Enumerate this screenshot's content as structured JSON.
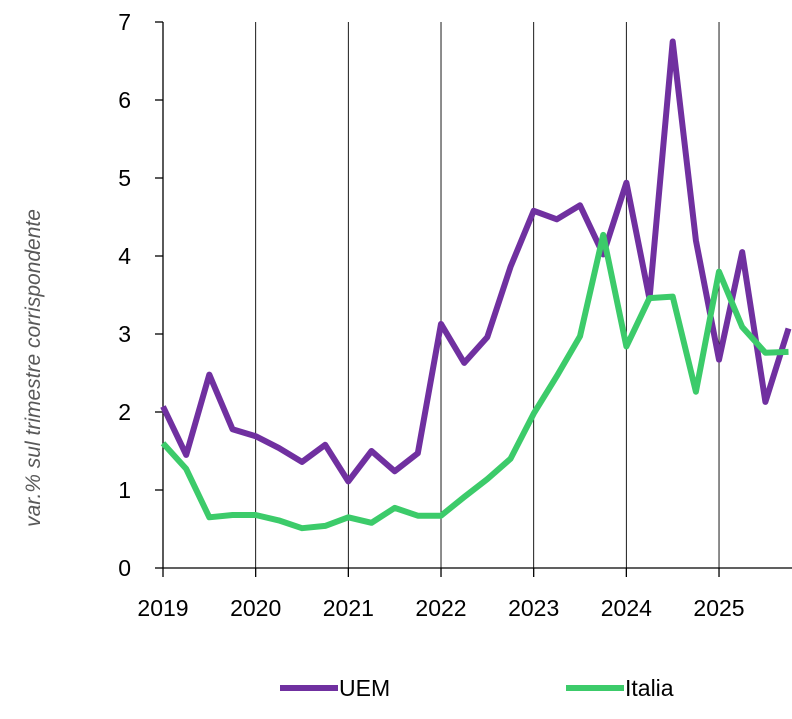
{
  "chart_data": {
    "type": "line",
    "ylabel": "var.% sul trimestre corrispondente",
    "xlabel": "",
    "ylim": [
      0,
      7
    ],
    "yticks": [
      "0",
      "1",
      "2",
      "3",
      "4",
      "5",
      "6",
      "7"
    ],
    "xticks": [
      "2019",
      "2020",
      "2021",
      "2022",
      "2023",
      "2024",
      "2025"
    ],
    "xlim": [
      "2019-Q1",
      "2025-Q4"
    ],
    "x": [
      "2019-Q1",
      "2019-Q2",
      "2019-Q3",
      "2019-Q4",
      "2020-Q1",
      "2020-Q2",
      "2020-Q3",
      "2020-Q4",
      "2021-Q1",
      "2021-Q2",
      "2021-Q3",
      "2021-Q4",
      "2022-Q1",
      "2022-Q2",
      "2022-Q3",
      "2022-Q4",
      "2023-Q1",
      "2023-Q2",
      "2023-Q3",
      "2023-Q4",
      "2024-Q1",
      "2024-Q2",
      "2024-Q3",
      "2024-Q4",
      "2025-Q1",
      "2025-Q2",
      "2025-Q3",
      "2025-Q4"
    ],
    "series": [
      {
        "name": "UEM",
        "color": "#7030A0",
        "values": [
          2.07,
          1.45,
          2.48,
          1.78,
          1.69,
          1.54,
          1.36,
          1.58,
          1.11,
          1.5,
          1.24,
          1.47,
          3.13,
          2.63,
          2.96,
          3.86,
          4.58,
          4.47,
          4.65,
          4.02,
          4.94,
          3.45,
          6.75,
          4.2,
          2.67,
          4.05,
          2.13,
          3.07
        ]
      },
      {
        "name": "Italia",
        "color": "#3CCB6A",
        "values": [
          1.6,
          1.27,
          0.65,
          0.68,
          0.68,
          0.61,
          0.51,
          0.54,
          0.65,
          0.58,
          0.77,
          0.67,
          0.67,
          0.91,
          1.14,
          1.4,
          1.98,
          2.46,
          2.97,
          4.27,
          2.84,
          3.46,
          3.48,
          2.26,
          3.8,
          3.09,
          2.76,
          2.77
        ]
      }
    ],
    "gridlines": "vertical at year starts",
    "legend": "bottom"
  }
}
